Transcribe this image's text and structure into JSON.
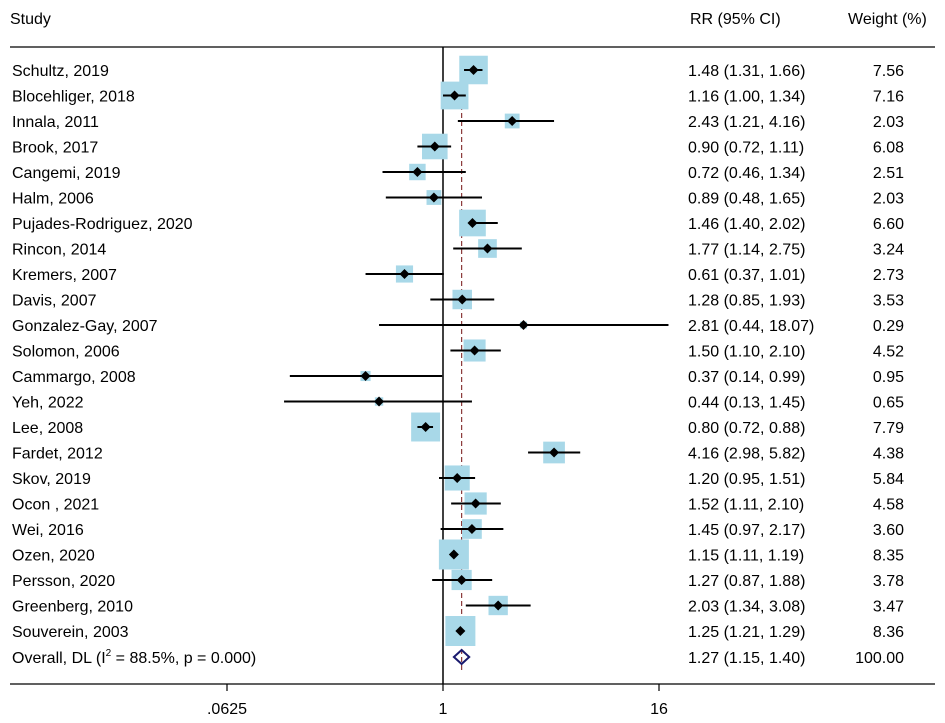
{
  "chart_data": {
    "type": "forest",
    "scale": "log2",
    "headers": {
      "study": "Study",
      "ci": "RR (95% CI)",
      "weight": "Weight (%)"
    },
    "x_ticks": [
      {
        "label": ".0625",
        "value": 0.0625
      },
      {
        "label": "1",
        "value": 1
      },
      {
        "label": "16",
        "value": 16
      }
    ],
    "null_value": 1,
    "overall_line_value": 1.27,
    "studies": [
      {
        "study": "Schultz, 2019",
        "rr": 1.48,
        "lo": 1.31,
        "hi": 1.66,
        "ci_text": "1.48 (1.31, 1.66)",
        "weight": 7.56,
        "weight_text": "7.56"
      },
      {
        "study": "Blocehliger, 2018",
        "rr": 1.16,
        "lo": 1.0,
        "hi": 1.34,
        "ci_text": "1.16 (1.00, 1.34)",
        "weight": 7.16,
        "weight_text": "7.16"
      },
      {
        "study": "Innala, 2011",
        "rr": 2.43,
        "lo": 1.21,
        "hi": 4.16,
        "ci_text": "2.43 (1.21, 4.16)",
        "weight": 2.03,
        "weight_text": "2.03"
      },
      {
        "study": "Brook, 2017",
        "rr": 0.9,
        "lo": 0.72,
        "hi": 1.11,
        "ci_text": "0.90 (0.72, 1.11)",
        "weight": 6.08,
        "weight_text": "6.08"
      },
      {
        "study": "Cangemi, 2019",
        "rr": 0.72,
        "lo": 0.46,
        "hi": 1.34,
        "ci_text": "0.72 (0.46, 1.34)",
        "weight": 2.51,
        "weight_text": "2.51"
      },
      {
        "study": "Halm, 2006",
        "rr": 0.89,
        "lo": 0.48,
        "hi": 1.65,
        "ci_text": "0.89 (0.48, 1.65)",
        "weight": 2.03,
        "weight_text": "2.03"
      },
      {
        "study": "Pujades-Rodriguez, 2020",
        "rr": 1.46,
        "lo": 1.4,
        "hi": 2.02,
        "ci_text": "1.46 (1.40, 2.02)",
        "weight": 6.6,
        "weight_text": "6.60"
      },
      {
        "study": "Rincon, 2014",
        "rr": 1.77,
        "lo": 1.14,
        "hi": 2.75,
        "ci_text": "1.77 (1.14, 2.75)",
        "weight": 3.24,
        "weight_text": "3.24"
      },
      {
        "study": "Kremers, 2007",
        "rr": 0.61,
        "lo": 0.37,
        "hi": 1.01,
        "ci_text": "0.61 (0.37, 1.01)",
        "weight": 2.73,
        "weight_text": "2.73"
      },
      {
        "study": "Davis, 2007",
        "rr": 1.28,
        "lo": 0.85,
        "hi": 1.93,
        "ci_text": "1.28 (0.85, 1.93)",
        "weight": 3.53,
        "weight_text": "3.53"
      },
      {
        "study": "Gonzalez-Gay, 2007",
        "rr": 2.81,
        "lo": 0.44,
        "hi": 18.07,
        "ci_text": "2.81 (0.44, 18.07)",
        "weight": 0.29,
        "weight_text": "0.29"
      },
      {
        "study": "Solomon, 2006",
        "rr": 1.5,
        "lo": 1.1,
        "hi": 2.1,
        "ci_text": "1.50 (1.10, 2.10)",
        "weight": 4.52,
        "weight_text": "4.52"
      },
      {
        "study": "Cammargo, 2008",
        "rr": 0.37,
        "lo": 0.14,
        "hi": 0.99,
        "ci_text": "0.37 (0.14, 0.99)",
        "weight": 0.95,
        "weight_text": "0.95"
      },
      {
        "study": "Yeh, 2022",
        "rr": 0.44,
        "lo": 0.13,
        "hi": 1.45,
        "ci_text": "0.44 (0.13, 1.45)",
        "weight": 0.65,
        "weight_text": "0.65"
      },
      {
        "study": "Lee, 2008",
        "rr": 0.8,
        "lo": 0.72,
        "hi": 0.88,
        "ci_text": "0.80 (0.72, 0.88)",
        "weight": 7.79,
        "weight_text": "7.79"
      },
      {
        "study": "Fardet, 2012",
        "rr": 4.16,
        "lo": 2.98,
        "hi": 5.82,
        "ci_text": "4.16 (2.98, 5.82)",
        "weight": 4.38,
        "weight_text": "4.38"
      },
      {
        "study": "Skov, 2019",
        "rr": 1.2,
        "lo": 0.95,
        "hi": 1.51,
        "ci_text": "1.20 (0.95, 1.51)",
        "weight": 5.84,
        "weight_text": "5.84"
      },
      {
        "study": "Ocon , 2021",
        "rr": 1.52,
        "lo": 1.11,
        "hi": 2.1,
        "ci_text": "1.52 (1.11, 2.10)",
        "weight": 4.58,
        "weight_text": "4.58"
      },
      {
        "study": "Wei, 2016",
        "rr": 1.45,
        "lo": 0.97,
        "hi": 2.17,
        "ci_text": "1.45 (0.97, 2.17)",
        "weight": 3.6,
        "weight_text": "3.60"
      },
      {
        "study": "Ozen, 2020",
        "rr": 1.15,
        "lo": 1.11,
        "hi": 1.19,
        "ci_text": "1.15 (1.11, 1.19)",
        "weight": 8.35,
        "weight_text": "8.35"
      },
      {
        "study": "Persson, 2020",
        "rr": 1.27,
        "lo": 0.87,
        "hi": 1.88,
        "ci_text": "1.27 (0.87, 1.88)",
        "weight": 3.78,
        "weight_text": "3.78"
      },
      {
        "study": "Greenberg, 2010",
        "rr": 2.03,
        "lo": 1.34,
        "hi": 3.08,
        "ci_text": "2.03 (1.34, 3.08)",
        "weight": 3.47,
        "weight_text": "3.47"
      },
      {
        "study": "Souverein, 2003",
        "rr": 1.25,
        "lo": 1.21,
        "hi": 1.29,
        "ci_text": "1.25 (1.21, 1.29)",
        "weight": 8.36,
        "weight_text": "8.36"
      }
    ],
    "overall": {
      "label_prefix": "Overall, DL (I",
      "label_sup": "2",
      "label_suffix": " = 88.5%, p = 0.000)",
      "rr": 1.27,
      "lo": 1.15,
      "hi": 1.4,
      "ci_text": "1.27 (1.15, 1.40)",
      "weight_text": "100.00"
    },
    "colors": {
      "box": "#a8d8e8",
      "point": "#000000",
      "ci_line": "#000000",
      "null_line": "#000000",
      "overall_line": "#8b3a3a",
      "overall_diamond": "#1a1a6e",
      "frame": "#000000"
    }
  }
}
